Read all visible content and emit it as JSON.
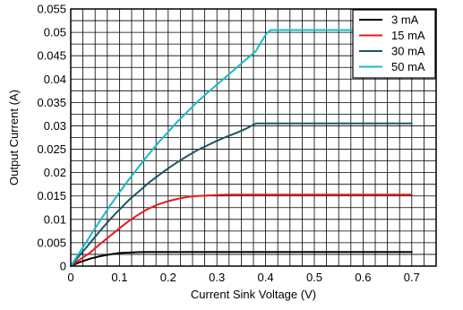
{
  "chart_data": {
    "type": "line",
    "xlabel": "Current Sink Voltage (V)",
    "ylabel": "Output Current (A)",
    "xlim": [
      0,
      0.75
    ],
    "ylim": [
      0,
      0.055
    ],
    "x_ticks": [
      "0",
      "0.1",
      "0.2",
      "0.3",
      "0.4",
      "0.5",
      "0.6",
      "0.7"
    ],
    "y_ticks": [
      "0",
      "0.005",
      "0.01",
      "0.015",
      "0.02",
      "0.025",
      "0.03",
      "0.035",
      "0.04",
      "0.045",
      "0.05",
      "0.055"
    ],
    "grid": true,
    "legend_position": "top-right",
    "series": [
      {
        "name": "3 mA",
        "color": "#000000",
        "x": [
          0,
          0.02,
          0.04,
          0.06,
          0.08,
          0.1,
          0.12,
          0.14,
          0.16,
          0.18,
          0.2,
          0.3,
          0.4,
          0.5,
          0.6,
          0.7
        ],
        "y": [
          0,
          0.0009,
          0.0016,
          0.0021,
          0.0025,
          0.0028,
          0.0029,
          0.00298,
          0.003,
          0.003,
          0.003,
          0.003,
          0.003,
          0.003,
          0.003,
          0.003
        ]
      },
      {
        "name": "15 mA",
        "color": "#e8191c",
        "x": [
          0,
          0.02,
          0.04,
          0.06,
          0.08,
          0.1,
          0.12,
          0.14,
          0.16,
          0.18,
          0.2,
          0.22,
          0.24,
          0.26,
          0.28,
          0.3,
          0.32,
          0.34,
          0.4,
          0.5,
          0.6,
          0.7
        ],
        "y": [
          0,
          0.0015,
          0.0029,
          0.0047,
          0.0064,
          0.0081,
          0.0097,
          0.0111,
          0.0123,
          0.0132,
          0.0139,
          0.0144,
          0.0148,
          0.015,
          0.0151,
          0.0152,
          0.0153,
          0.0153,
          0.0153,
          0.0153,
          0.0153,
          0.0153
        ]
      },
      {
        "name": "30 mA",
        "color": "#1e5563",
        "x": [
          0,
          0.02,
          0.04,
          0.06,
          0.08,
          0.1,
          0.12,
          0.14,
          0.16,
          0.18,
          0.2,
          0.22,
          0.24,
          0.26,
          0.28,
          0.3,
          0.32,
          0.34,
          0.36,
          0.38,
          0.4,
          0.5,
          0.6,
          0.7
        ],
        "y": [
          0,
          0.0025,
          0.005,
          0.0075,
          0.0099,
          0.0121,
          0.0142,
          0.016,
          0.0178,
          0.0194,
          0.0209,
          0.0223,
          0.0236,
          0.0248,
          0.0258,
          0.0268,
          0.0277,
          0.0285,
          0.0294,
          0.0305,
          0.0305,
          0.0305,
          0.0305,
          0.0305
        ]
      },
      {
        "name": "50 mA",
        "color": "#19b9c6",
        "x": [
          0,
          0.02,
          0.04,
          0.06,
          0.08,
          0.1,
          0.12,
          0.14,
          0.16,
          0.18,
          0.2,
          0.22,
          0.24,
          0.26,
          0.28,
          0.3,
          0.32,
          0.34,
          0.36,
          0.38,
          0.4,
          0.41,
          0.5,
          0.6,
          0.7
        ],
        "y": [
          0,
          0.0032,
          0.0065,
          0.0097,
          0.0128,
          0.0158,
          0.0186,
          0.0213,
          0.0239,
          0.0264,
          0.0287,
          0.031,
          0.0331,
          0.0351,
          0.037,
          0.0388,
          0.0406,
          0.0424,
          0.0442,
          0.046,
          0.0495,
          0.0505,
          0.0505,
          0.0505,
          0.0505
        ]
      }
    ]
  }
}
